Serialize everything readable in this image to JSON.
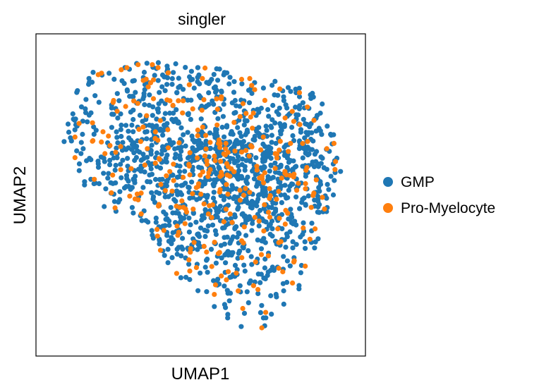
{
  "chart_data": {
    "type": "scatter",
    "title": "singler",
    "xlabel": "UMAP1",
    "ylabel": "UMAP2",
    "xlim": [
      0,
      100
    ],
    "ylim": [
      0,
      100
    ],
    "xticks": "hidden",
    "yticks": "hidden",
    "grid": false,
    "legend_placement": "right",
    "series": [
      {
        "name": "GMP",
        "color": "#1f77b4"
      },
      {
        "name": "Pro-Myelocyte",
        "color": "#ff7f0e"
      }
    ],
    "cloud": {
      "point_count": 1650,
      "pro_myelocyte_fraction": 0.16,
      "outline": [
        [
          6,
          72
        ],
        [
          13,
          90
        ],
        [
          28,
          94
        ],
        [
          42,
          94
        ],
        [
          53,
          92
        ],
        [
          66,
          89
        ],
        [
          76,
          87
        ],
        [
          87,
          83
        ],
        [
          94,
          75
        ],
        [
          95,
          59
        ],
        [
          91,
          44
        ],
        [
          86,
          32
        ],
        [
          82,
          20
        ],
        [
          75,
          11
        ],
        [
          68,
          4
        ],
        [
          64,
          6
        ],
        [
          60,
          8
        ],
        [
          52,
          14
        ],
        [
          45,
          20
        ],
        [
          40,
          26
        ],
        [
          35,
          35
        ],
        [
          28,
          42
        ],
        [
          20,
          43
        ],
        [
          14,
          51
        ],
        [
          6,
          65
        ]
      ],
      "dense_regions": [
        {
          "x": 58,
          "y": 50,
          "spread": 16,
          "weight": 0.45
        },
        {
          "x": 40,
          "y": 70,
          "spread": 18,
          "weight": 0.35
        },
        {
          "x": 78,
          "y": 62,
          "spread": 12,
          "weight": 0.2
        }
      ]
    }
  }
}
